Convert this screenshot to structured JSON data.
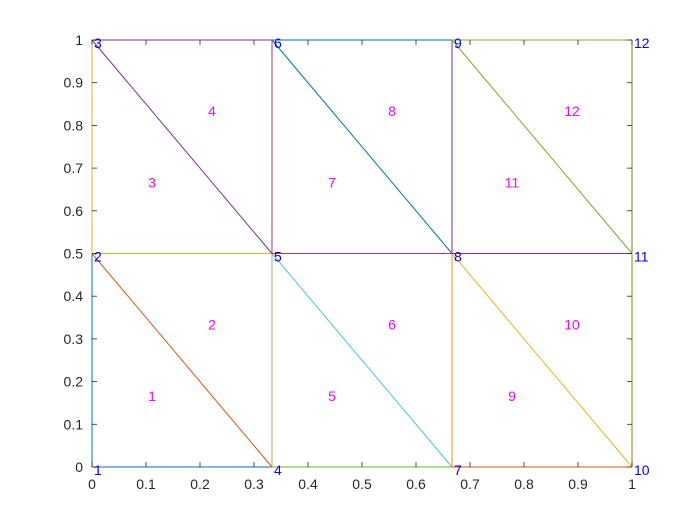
{
  "chart_data": {
    "type": "mesh",
    "xlim": [
      0,
      1
    ],
    "ylim": [
      0,
      1
    ],
    "grid": false,
    "box": true,
    "x_ticks": [
      0,
      0.1,
      0.2,
      0.3,
      0.4,
      0.5,
      0.6,
      0.7,
      0.8,
      0.9,
      1
    ],
    "y_ticks": [
      0,
      0.1,
      0.2,
      0.3,
      0.4,
      0.5,
      0.6,
      0.7,
      0.8,
      0.9,
      1
    ],
    "x_tick_labels": [
      "0",
      "0.1",
      "0.2",
      "0.3",
      "0.4",
      "0.5",
      "0.6",
      "0.7",
      "0.8",
      "0.9",
      "1"
    ],
    "y_tick_labels": [
      "0",
      "0.1",
      "0.2",
      "0.3",
      "0.4",
      "0.5",
      "0.6",
      "0.7",
      "0.8",
      "0.9",
      "1"
    ],
    "node_label_color": "#0000ff",
    "element_label_color": "#ff00ff",
    "nodes": [
      {
        "id": "1",
        "x": 0,
        "y": 0
      },
      {
        "id": "2",
        "x": 0,
        "y": 0.5
      },
      {
        "id": "3",
        "x": 0,
        "y": 1
      },
      {
        "id": "4",
        "x": 0.3333,
        "y": 0
      },
      {
        "id": "5",
        "x": 0.3333,
        "y": 0.5
      },
      {
        "id": "6",
        "x": 0.3333,
        "y": 1
      },
      {
        "id": "7",
        "x": 0.6667,
        "y": 0
      },
      {
        "id": "8",
        "x": 0.6667,
        "y": 0.5
      },
      {
        "id": "9",
        "x": 0.6667,
        "y": 1
      },
      {
        "id": "10",
        "x": 1,
        "y": 0
      },
      {
        "id": "11",
        "x": 1,
        "y": 0.5
      },
      {
        "id": "12",
        "x": 1,
        "y": 1
      }
    ],
    "elements": [
      {
        "id": "1",
        "nodes": [
          1,
          4,
          2
        ],
        "color": "#d95319"
      },
      {
        "id": "2",
        "nodes": [
          4,
          5,
          2
        ],
        "color": "#edb120"
      },
      {
        "id": "3",
        "nodes": [
          2,
          5,
          3
        ],
        "color": "#7e2f8e"
      },
      {
        "id": "4",
        "nodes": [
          5,
          6,
          3
        ],
        "color": "#c03060"
      },
      {
        "id": "5",
        "nodes": [
          4,
          7,
          5
        ],
        "color": "#4dbeee"
      },
      {
        "id": "6",
        "nodes": [
          7,
          8,
          5
        ],
        "color": "#a2142f"
      },
      {
        "id": "7",
        "nodes": [
          5,
          8,
          6
        ],
        "color": "#0072bd"
      },
      {
        "id": "8",
        "nodes": [
          8,
          9,
          6
        ],
        "color": "#0072bd"
      },
      {
        "id": "9",
        "nodes": [
          7,
          10,
          8
        ],
        "color": "#edb120"
      },
      {
        "id": "10",
        "nodes": [
          10,
          11,
          8
        ],
        "color": "#8b8b00"
      },
      {
        "id": "11",
        "nodes": [
          8,
          11,
          9
        ],
        "color": "#77ac30"
      },
      {
        "id": "12",
        "nodes": [
          11,
          12,
          9
        ],
        "color": "#6b8e23"
      }
    ],
    "edges": [
      {
        "from": 1,
        "to": 4,
        "color": "#0072bd"
      },
      {
        "from": 4,
        "to": 7,
        "color": "#77ac30"
      },
      {
        "from": 7,
        "to": 10,
        "color": "#d95319"
      },
      {
        "from": 1,
        "to": 2,
        "color": "#0072bd"
      },
      {
        "from": 2,
        "to": 3,
        "color": "#edb120"
      },
      {
        "from": 3,
        "to": 6,
        "color": "#7e2f8e"
      },
      {
        "from": 6,
        "to": 9,
        "color": "#0072bd"
      },
      {
        "from": 9,
        "to": 12,
        "color": "#77ac30"
      },
      {
        "from": 10,
        "to": 11,
        "color": "#8b8b00"
      },
      {
        "from": 11,
        "to": 12,
        "color": "#6b8e23"
      },
      {
        "from": 4,
        "to": 2,
        "color": "#d95319"
      },
      {
        "from": 2,
        "to": 5,
        "color": "#edb120"
      },
      {
        "from": 5,
        "to": 3,
        "color": "#7e2f8e"
      },
      {
        "from": 4,
        "to": 5,
        "color": "#a5b56b"
      },
      {
        "from": 5,
        "to": 6,
        "color": "#c03060"
      },
      {
        "from": 7,
        "to": 5,
        "color": "#4dbeee"
      },
      {
        "from": 5,
        "to": 8,
        "color": "#c03060"
      },
      {
        "from": 8,
        "to": 6,
        "color": "#0072bd"
      },
      {
        "from": 7,
        "to": 8,
        "color": "#ff8c1a"
      },
      {
        "from": 8,
        "to": 9,
        "color": "#7e2f8e"
      },
      {
        "from": 10,
        "to": 8,
        "color": "#edb120"
      },
      {
        "from": 8,
        "to": 11,
        "color": "#7e2f8e"
      },
      {
        "from": 11,
        "to": 9,
        "color": "#77ac30"
      }
    ]
  }
}
